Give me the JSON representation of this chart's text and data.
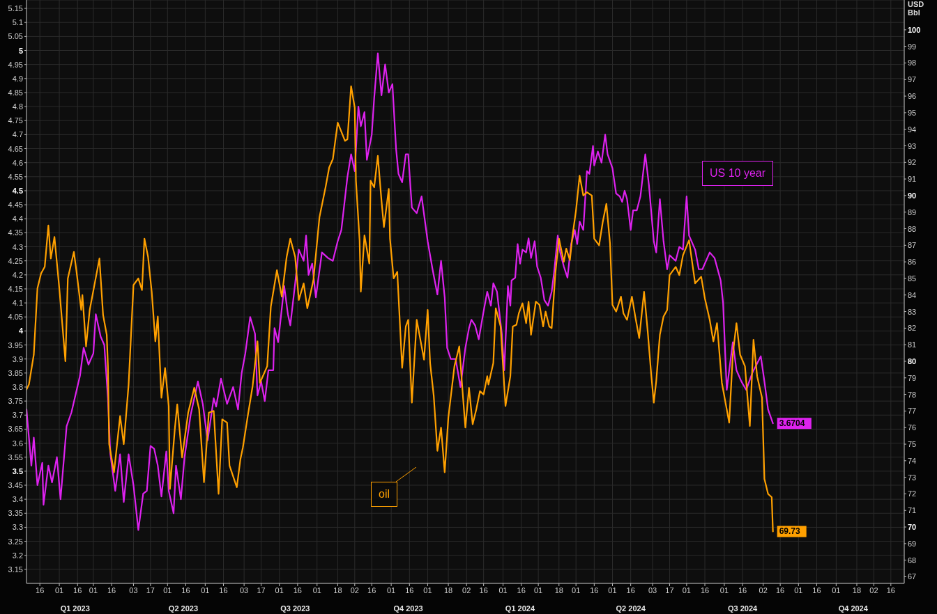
{
  "chart_data": {
    "type": "line",
    "y2label": "USD Bbl",
    "grid": true,
    "xlim": [
      "2023-01-05",
      "2024-12-27"
    ],
    "xticks": [
      {
        "value": "2023-01-16",
        "label": "16"
      },
      {
        "value": "2023-02-01",
        "label": "01"
      },
      {
        "value": "2023-02-16",
        "label": "16"
      },
      {
        "value": "2023-03-01",
        "label": "01"
      },
      {
        "value": "2023-03-16",
        "label": "16"
      },
      {
        "value": "2023-04-03",
        "label": "03"
      },
      {
        "value": "2023-04-17",
        "label": "17"
      },
      {
        "value": "2023-05-01",
        "label": "01"
      },
      {
        "value": "2023-05-16",
        "label": "16"
      },
      {
        "value": "2023-06-01",
        "label": "01"
      },
      {
        "value": "2023-06-16",
        "label": "16"
      },
      {
        "value": "2023-07-03",
        "label": "03"
      },
      {
        "value": "2023-07-17",
        "label": "17"
      },
      {
        "value": "2023-08-01",
        "label": "01"
      },
      {
        "value": "2023-08-16",
        "label": "16"
      },
      {
        "value": "2023-09-01",
        "label": "01"
      },
      {
        "value": "2023-09-18",
        "label": "18"
      },
      {
        "value": "2023-10-02",
        "label": "02"
      },
      {
        "value": "2023-10-16",
        "label": "16"
      },
      {
        "value": "2023-11-01",
        "label": "01"
      },
      {
        "value": "2023-11-16",
        "label": "16"
      },
      {
        "value": "2023-12-01",
        "label": "01"
      },
      {
        "value": "2023-12-18",
        "label": "18"
      },
      {
        "value": "2024-01-02",
        "label": "02"
      },
      {
        "value": "2024-01-16",
        "label": "16"
      },
      {
        "value": "2024-02-01",
        "label": "01"
      },
      {
        "value": "2024-02-16",
        "label": "16"
      },
      {
        "value": "2024-03-01",
        "label": "01"
      },
      {
        "value": "2024-03-18",
        "label": "18"
      },
      {
        "value": "2024-04-01",
        "label": "01"
      },
      {
        "value": "2024-04-16",
        "label": "16"
      },
      {
        "value": "2024-05-01",
        "label": "01"
      },
      {
        "value": "2024-05-16",
        "label": "16"
      },
      {
        "value": "2024-06-03",
        "label": "03"
      },
      {
        "value": "2024-06-17",
        "label": "17"
      },
      {
        "value": "2024-07-01",
        "label": "01"
      },
      {
        "value": "2024-07-16",
        "label": "16"
      },
      {
        "value": "2024-08-01",
        "label": "01"
      },
      {
        "value": "2024-08-16",
        "label": "16"
      },
      {
        "value": "2024-09-02",
        "label": "02"
      },
      {
        "value": "2024-09-16",
        "label": "16"
      },
      {
        "value": "2024-10-01",
        "label": "01"
      },
      {
        "value": "2024-10-16",
        "label": "16"
      },
      {
        "value": "2024-11-01",
        "label": "01"
      },
      {
        "value": "2024-11-18",
        "label": "18"
      },
      {
        "value": "2024-12-02",
        "label": "02"
      },
      {
        "value": "2024-12-16",
        "label": "16"
      }
    ],
    "x2lim": [
      "2023-01-05",
      "2024-12-27"
    ],
    "x2ticks": [
      {
        "value": "2023-02-14",
        "label": "Q1 2023"
      },
      {
        "value": "2023-05-14",
        "label": "Q2 2023"
      },
      {
        "value": "2023-08-14",
        "label": "Q3 2023"
      },
      {
        "value": "2023-11-15",
        "label": "Q4 2023"
      },
      {
        "value": "2024-02-15",
        "label": "Q1 2024"
      },
      {
        "value": "2024-05-16",
        "label": "Q2 2024"
      },
      {
        "value": "2024-08-16",
        "label": "Q3 2024"
      },
      {
        "value": "2024-11-15",
        "label": "Q4 2024"
      }
    ],
    "ylim": [
      3.1,
      5.18
    ],
    "yticks": [
      3.15,
      3.2,
      3.25,
      3.3,
      3.35,
      3.4,
      3.45,
      3.5,
      3.55,
      3.6,
      3.65,
      3.7,
      3.75,
      3.8,
      3.85,
      3.9,
      3.95,
      4,
      4.05,
      4.1,
      4.15,
      4.2,
      4.25,
      4.3,
      4.35,
      4.4,
      4.45,
      4.5,
      4.55,
      4.6,
      4.65,
      4.7,
      4.75,
      4.8,
      4.85,
      4.9,
      4.95,
      5,
      5.05,
      5.1,
      5.15
    ],
    "y2lim": [
      66.6,
      101.8
    ],
    "y2ticks": [
      67,
      68,
      69,
      70,
      71,
      72,
      73,
      74,
      75,
      76,
      77,
      78,
      79,
      80,
      81,
      82,
      83,
      84,
      85,
      86,
      87,
      88,
      89,
      90,
      91,
      92,
      93,
      94,
      95,
      96,
      97,
      98,
      99,
      100
    ],
    "series": [
      {
        "name": "US 10 year",
        "color": "#dd22ee",
        "axis": "y",
        "value_labels": [
          null,
          null,
          null,
          null,
          null,
          null,
          null,
          null,
          null,
          null,
          null,
          null,
          null,
          null,
          null,
          null,
          null,
          null,
          null,
          null,
          null,
          null,
          null,
          null,
          null,
          null,
          null,
          null,
          null,
          null,
          null,
          null,
          null,
          null,
          null,
          null,
          null,
          null,
          null,
          null,
          null,
          null,
          null,
          null,
          null,
          null,
          null,
          null,
          null,
          null,
          null,
          null,
          null,
          null,
          null,
          null,
          null,
          null,
          null,
          null,
          null,
          null,
          null,
          null,
          null,
          null,
          null,
          null,
          null,
          null,
          null,
          null,
          null,
          null,
          null,
          null,
          null,
          null,
          null,
          null,
          null,
          null,
          null,
          null,
          null,
          null,
          null,
          null,
          null,
          null,
          null,
          null,
          null,
          null,
          null,
          null,
          null,
          null,
          null,
          null,
          null,
          null,
          null,
          null,
          null,
          null,
          null,
          null,
          null,
          null,
          null,
          null,
          null,
          null,
          null,
          null,
          null,
          null,
          null,
          null,
          null,
          null,
          null,
          null,
          null,
          null,
          null,
          null,
          null,
          null,
          null,
          null,
          null,
          null,
          null,
          null,
          null,
          null,
          null,
          null,
          null,
          null,
          null,
          null,
          null,
          null,
          null,
          null,
          null,
          null,
          null,
          null,
          null,
          null,
          null,
          null,
          null,
          null,
          null,
          null,
          null,
          null,
          null,
          null,
          null,
          null,
          null,
          null,
          null,
          null,
          null,
          null,
          null,
          null,
          null,
          null,
          null,
          null,
          null,
          null,
          null,
          null,
          null,
          null,
          null,
          null,
          null,
          null,
          null,
          null,
          null,
          null,
          "3.6704"
        ],
        "x": [
          "2023-01-05",
          "2023-01-09",
          "2023-01-11",
          "2023-01-14",
          "2023-01-18",
          "2023-01-19",
          "2023-01-23",
          "2023-01-26",
          "2023-01-30",
          "2023-02-02",
          "2023-02-07",
          "2023-02-11",
          "2023-02-18",
          "2023-02-21",
          "2023-02-25",
          "2023-03-01",
          "2023-03-03",
          "2023-03-07",
          "2023-03-10",
          "2023-03-13",
          "2023-03-15",
          "2023-03-19",
          "2023-03-23",
          "2023-03-26",
          "2023-03-30",
          "2023-04-03",
          "2023-04-07",
          "2023-04-11",
          "2023-04-14",
          "2023-04-17",
          "2023-04-20",
          "2023-04-23",
          "2023-04-26",
          "2023-04-30",
          "2023-05-02",
          "2023-05-06",
          "2023-05-08",
          "2023-05-12",
          "2023-05-15",
          "2023-05-20",
          "2023-05-26",
          "2023-05-30",
          "2023-06-03",
          "2023-06-08",
          "2023-06-10",
          "2023-06-14",
          "2023-06-19",
          "2023-06-24",
          "2023-06-28",
          "2023-07-01",
          "2023-07-04",
          "2023-07-08",
          "2023-07-12",
          "2023-07-14",
          "2023-07-17",
          "2023-07-20",
          "2023-07-23",
          "2023-07-27",
          "2023-07-28",
          "2023-07-31",
          "2023-08-05",
          "2023-08-08",
          "2023-08-10",
          "2023-08-14",
          "2023-08-17",
          "2023-08-21",
          "2023-08-23",
          "2023-08-25",
          "2023-08-28",
          "2023-08-31",
          "2023-09-05",
          "2023-09-10",
          "2023-09-14",
          "2023-09-18",
          "2023-09-21",
          "2023-09-26",
          "2023-09-29",
          "2023-10-02",
          "2023-10-05",
          "2023-10-07",
          "2023-10-10",
          "2023-10-12",
          "2023-10-16",
          "2023-10-18",
          "2023-10-21",
          "2023-10-24",
          "2023-10-27",
          "2023-10-30",
          "2023-11-02",
          "2023-11-05",
          "2023-11-07",
          "2023-11-10",
          "2023-11-13",
          "2023-11-15",
          "2023-11-18",
          "2023-11-22",
          "2023-11-26",
          "2023-12-01",
          "2023-12-03",
          "2023-12-05",
          "2023-12-09",
          "2023-12-12",
          "2023-12-15",
          "2023-12-17",
          "2023-12-20",
          "2023-12-24",
          "2023-12-28",
          "2024-01-01",
          "2024-01-04",
          "2024-01-06",
          "2024-01-09",
          "2024-01-12",
          "2024-01-16",
          "2024-01-19",
          "2024-01-22",
          "2024-01-24",
          "2024-01-27",
          "2024-01-31",
          "2024-02-02",
          "2024-02-05",
          "2024-02-07",
          "2024-02-08",
          "2024-02-11",
          "2024-02-13",
          "2024-02-15",
          "2024-02-17",
          "2024-02-20",
          "2024-02-22",
          "2024-02-24",
          "2024-02-27",
          "2024-02-29",
          "2024-03-03",
          "2024-03-06",
          "2024-03-09",
          "2024-03-12",
          "2024-03-14",
          "2024-03-17",
          "2024-03-19",
          "2024-03-22",
          "2024-03-25",
          "2024-03-28",
          "2024-03-31",
          "2024-04-02",
          "2024-04-04",
          "2024-04-07",
          "2024-04-10",
          "2024-04-12",
          "2024-04-15",
          "2024-04-16",
          "2024-04-19",
          "2024-04-22",
          "2024-04-25",
          "2024-04-27",
          "2024-05-01",
          "2024-05-04",
          "2024-05-07",
          "2024-05-09",
          "2024-05-11",
          "2024-05-13",
          "2024-05-16",
          "2024-05-18",
          "2024-05-21",
          "2024-05-24",
          "2024-05-28",
          "2024-05-31",
          "2024-06-04",
          "2024-06-06",
          "2024-06-09",
          "2024-06-12",
          "2024-06-15",
          "2024-06-17",
          "2024-06-22",
          "2024-06-25",
          "2024-06-28",
          "2024-07-01",
          "2024-07-03",
          "2024-07-08",
          "2024-07-11",
          "2024-07-14",
          "2024-07-20",
          "2024-07-24",
          "2024-07-29",
          "2024-07-31",
          "2024-08-03",
          "2024-08-08",
          "2024-08-11",
          "2024-08-15",
          "2024-08-19",
          "2024-08-24",
          "2024-08-31",
          "2024-09-03",
          "2024-09-06",
          "2024-09-10"
        ],
        "values": [
          3.72,
          3.52,
          3.62,
          3.45,
          3.53,
          3.38,
          3.52,
          3.46,
          3.55,
          3.4,
          3.66,
          3.71,
          3.84,
          3.94,
          3.88,
          3.92,
          4.06,
          3.98,
          3.95,
          3.76,
          3.56,
          3.43,
          3.56,
          3.39,
          3.56,
          3.45,
          3.29,
          3.42,
          3.43,
          3.59,
          3.58,
          3.52,
          3.41,
          3.57,
          3.43,
          3.35,
          3.52,
          3.4,
          3.55,
          3.7,
          3.82,
          3.74,
          3.61,
          3.76,
          3.73,
          3.83,
          3.74,
          3.8,
          3.72,
          3.85,
          3.92,
          4.05,
          3.99,
          3.77,
          3.82,
          3.75,
          3.86,
          3.86,
          4.01,
          3.96,
          4.16,
          4.06,
          4.02,
          4.17,
          4.29,
          4.25,
          4.34,
          4.2,
          4.24,
          4.12,
          4.28,
          4.26,
          4.25,
          4.32,
          4.36,
          4.55,
          4.63,
          4.57,
          4.8,
          4.73,
          4.78,
          4.61,
          4.7,
          4.83,
          4.99,
          4.84,
          4.95,
          4.85,
          4.88,
          4.65,
          4.56,
          4.53,
          4.63,
          4.63,
          4.44,
          4.42,
          4.48,
          4.32,
          4.27,
          4.22,
          4.13,
          4.25,
          4.12,
          3.94,
          3.9,
          3.9,
          3.8,
          3.94,
          4.01,
          4.04,
          4.02,
          3.97,
          4.07,
          4.14,
          4.09,
          4.17,
          4.14,
          3.99,
          3.86,
          4.16,
          4.09,
          4.18,
          4.19,
          4.31,
          4.24,
          4.29,
          4.28,
          4.33,
          4.26,
          4.32,
          4.23,
          4.19,
          4.11,
          4.09,
          4.14,
          4.21,
          4.34,
          4.28,
          4.23,
          4.19,
          4.31,
          4.36,
          4.31,
          4.39,
          4.36,
          4.57,
          4.56,
          4.66,
          4.59,
          4.64,
          4.6,
          4.7,
          4.63,
          4.58,
          4.49,
          4.48,
          4.46,
          4.5,
          4.47,
          4.36,
          4.43,
          4.43,
          4.48,
          4.63,
          4.52,
          4.32,
          4.28,
          4.47,
          4.32,
          4.22,
          4.27,
          4.25,
          4.3,
          4.29,
          4.48,
          4.34,
          4.29,
          4.22,
          4.22,
          4.28,
          4.26,
          4.18,
          4.1,
          3.79,
          3.96,
          3.86,
          3.82,
          3.79,
          3.85,
          3.91,
          3.82,
          3.72,
          3.6704
        ]
      },
      {
        "name": "oil",
        "color": "#ffa000",
        "axis": "y2",
        "value_labels": [
          null,
          null,
          null,
          null,
          null,
          null,
          null,
          null,
          null,
          null,
          null,
          null,
          null,
          null,
          null,
          null,
          null,
          null,
          null,
          null,
          null,
          null,
          null,
          null,
          null,
          null,
          null,
          null,
          null,
          null,
          null,
          null,
          null,
          null,
          null,
          null,
          null,
          null,
          null,
          null,
          null,
          null,
          null,
          null,
          null,
          null,
          null,
          null,
          null,
          null,
          null,
          null,
          null,
          null,
          null,
          null,
          null,
          null,
          null,
          null,
          null,
          null,
          null,
          null,
          null,
          null,
          null,
          null,
          null,
          null,
          null,
          null,
          null,
          null,
          null,
          null,
          null,
          null,
          null,
          null,
          null,
          null,
          null,
          null,
          null,
          null,
          null,
          null,
          null,
          null,
          null,
          null,
          null,
          null,
          null,
          null,
          null,
          null,
          null,
          null,
          null,
          null,
          null,
          null,
          null,
          null,
          null,
          null,
          null,
          null,
          null,
          null,
          null,
          null,
          null,
          null,
          null,
          null,
          null,
          null,
          null,
          null,
          null,
          null,
          null,
          null,
          null,
          null,
          null,
          null,
          null,
          null,
          null,
          null,
          null,
          null,
          null,
          null,
          null,
          null,
          null,
          null,
          null,
          null,
          null,
          null,
          null,
          null,
          null,
          null,
          null,
          null,
          null,
          null,
          null,
          null,
          null,
          null,
          null,
          null,
          null,
          null,
          null,
          null,
          null,
          null,
          null,
          null,
          null,
          null,
          null,
          null,
          null,
          null,
          null,
          null,
          null,
          null,
          null,
          null,
          null,
          null,
          null,
          null,
          null,
          null,
          null,
          null,
          null,
          null,
          null,
          "69.73"
        ],
        "x": [
          "2023-01-05",
          "2023-01-07",
          "2023-01-11",
          "2023-01-14",
          "2023-01-17",
          "2023-01-20",
          "2023-01-23",
          "2023-01-25",
          "2023-01-28",
          "2023-02-01",
          "2023-02-06",
          "2023-02-08",
          "2023-02-13",
          "2023-02-15",
          "2023-02-19",
          "2023-02-20",
          "2023-02-23",
          "2023-02-26",
          "2023-03-06",
          "2023-03-09",
          "2023-03-12",
          "2023-03-13",
          "2023-03-14",
          "2023-03-18",
          "2023-03-23",
          "2023-03-26",
          "2023-03-30",
          "2023-04-03",
          "2023-04-07",
          "2023-04-10",
          "2023-04-12",
          "2023-04-15",
          "2023-04-18",
          "2023-04-21",
          "2023-04-23",
          "2023-04-26",
          "2023-04-29",
          "2023-05-02",
          "2023-05-03",
          "2023-05-07",
          "2023-05-09",
          "2023-05-13",
          "2023-05-18",
          "2023-05-23",
          "2023-05-27",
          "2023-05-31",
          "2023-06-04",
          "2023-06-08",
          "2023-06-12",
          "2023-06-15",
          "2023-06-19",
          "2023-06-21",
          "2023-06-27",
          "2023-06-30",
          "2023-07-02",
          "2023-07-06",
          "2023-07-10",
          "2023-07-14",
          "2023-07-16",
          "2023-07-22",
          "2023-07-25",
          "2023-07-30",
          "2023-08-03",
          "2023-08-07",
          "2023-08-10",
          "2023-08-14",
          "2023-08-17",
          "2023-08-21",
          "2023-08-24",
          "2023-08-29",
          "2023-09-03",
          "2023-09-08",
          "2023-09-11",
          "2023-09-14",
          "2023-09-18",
          "2023-09-24",
          "2023-09-26",
          "2023-09-29",
          "2023-10-02",
          "2023-10-03",
          "2023-10-06",
          "2023-10-07",
          "2023-10-10",
          "2023-10-14",
          "2023-10-15",
          "2023-10-18",
          "2023-10-21",
          "2023-10-24",
          "2023-10-26",
          "2023-10-30",
          "2023-10-31",
          "2023-11-03",
          "2023-11-06",
          "2023-11-10",
          "2023-11-13",
          "2023-11-15",
          "2023-11-18",
          "2023-11-22",
          "2023-11-28",
          "2023-12-01",
          "2023-12-03",
          "2023-12-06",
          "2023-12-09",
          "2023-12-12",
          "2023-12-15",
          "2023-12-18",
          "2023-12-23",
          "2023-12-27",
          "2023-12-30",
          "2024-01-01",
          "2024-01-04",
          "2024-01-07",
          "2024-01-10",
          "2024-01-13",
          "2024-01-16",
          "2024-01-19",
          "2024-01-20",
          "2024-01-24",
          "2024-01-26",
          "2024-01-30",
          "2024-02-03",
          "2024-02-07",
          "2024-02-09",
          "2024-02-12",
          "2024-02-14",
          "2024-02-17",
          "2024-02-20",
          "2024-02-22",
          "2024-02-24",
          "2024-02-28",
          "2024-03-02",
          "2024-03-05",
          "2024-03-07",
          "2024-03-10",
          "2024-03-12",
          "2024-03-15",
          "2024-03-18",
          "2024-03-22",
          "2024-03-24",
          "2024-03-27",
          "2024-03-29",
          "2024-04-01",
          "2024-04-04",
          "2024-04-07",
          "2024-04-10",
          "2024-04-14",
          "2024-04-16",
          "2024-04-20",
          "2024-04-23",
          "2024-04-26",
          "2024-04-29",
          "2024-05-01",
          "2024-05-04",
          "2024-05-08",
          "2024-05-10",
          "2024-05-13",
          "2024-05-17",
          "2024-05-20",
          "2024-05-23",
          "2024-05-27",
          "2024-05-30",
          "2024-06-02",
          "2024-06-04",
          "2024-06-06",
          "2024-06-09",
          "2024-06-12",
          "2024-06-15",
          "2024-06-17",
          "2024-06-22",
          "2024-06-25",
          "2024-06-28",
          "2024-07-03",
          "2024-07-08",
          "2024-07-13",
          "2024-07-16",
          "2024-07-20",
          "2024-07-23",
          "2024-07-26",
          "2024-07-30",
          "2024-08-05",
          "2024-08-08",
          "2024-08-11",
          "2024-08-14",
          "2024-08-18",
          "2024-08-22",
          "2024-08-25",
          "2024-08-28",
          "2024-09-01",
          "2024-09-03",
          "2024-09-06",
          "2024-09-09",
          "2024-09-10"
        ],
        "values": [
          78.3,
          78.6,
          80.4,
          84.4,
          85.3,
          85.7,
          88.2,
          86.2,
          87.5,
          84.4,
          80.0,
          85.0,
          86.6,
          85.5,
          83.1,
          84.0,
          80.9,
          83.1,
          86.2,
          82.8,
          81.6,
          79.7,
          75.0,
          73.3,
          76.7,
          75.0,
          78.6,
          84.6,
          85.0,
          84.3,
          87.4,
          86.3,
          84.2,
          81.2,
          82.7,
          77.8,
          79.6,
          77.3,
          72.3,
          75.9,
          77.4,
          74.2,
          76.9,
          78.4,
          77.1,
          72.7,
          76.9,
          77.0,
          72.0,
          76.5,
          76.3,
          73.7,
          72.4,
          74.1,
          74.8,
          76.7,
          78.5,
          81.2,
          78.7,
          79.7,
          83.3,
          85.5,
          83.9,
          86.3,
          87.4,
          86.3,
          83.7,
          84.7,
          83.2,
          84.9,
          88.7,
          90.5,
          91.7,
          92.2,
          94.4,
          93.3,
          93.4,
          96.6,
          95.3,
          90.9,
          87.3,
          84.2,
          87.6,
          85.9,
          90.9,
          90.5,
          92.4,
          89.7,
          88.1,
          90.4,
          87.4,
          85.0,
          85.4,
          79.6,
          82.1,
          82.5,
          77.5,
          82.5,
          80.1,
          83.1,
          79.9,
          77.9,
          74.6,
          76.0,
          73.3,
          76.6,
          79.7,
          80.9,
          77.9,
          76.0,
          78.4,
          76.2,
          77.1,
          78.2,
          78.0,
          79.1,
          78.6,
          79.9,
          83.2,
          82.1,
          77.3,
          79.1,
          82.1,
          82.2,
          82.9,
          83.5,
          82.3,
          83.6,
          81.6,
          83.6,
          83.4,
          82.1,
          83.0,
          82.1,
          82.0,
          85.3,
          87.4,
          86.0,
          86.8,
          86.1,
          87.5,
          89.1,
          91.2,
          90.0,
          90.2,
          90.0,
          87.4,
          87.0,
          88.4,
          89.5,
          87.1,
          83.4,
          83.0,
          83.9,
          82.9,
          82.5,
          83.9,
          82.6,
          81.4,
          84.2,
          81.8,
          79.1,
          77.5,
          78.8,
          81.6,
          82.7,
          83.1,
          85.2,
          85.7,
          85.2,
          86.4,
          87.3,
          84.7,
          85.1,
          83.8,
          82.5,
          81.2,
          82.3,
          78.7,
          76.3,
          80.4,
          82.3,
          80.4,
          79.7,
          76.1,
          81.3,
          79.1,
          77.8,
          72.9,
          72.0,
          71.8,
          69.73
        ]
      }
    ]
  }
}
